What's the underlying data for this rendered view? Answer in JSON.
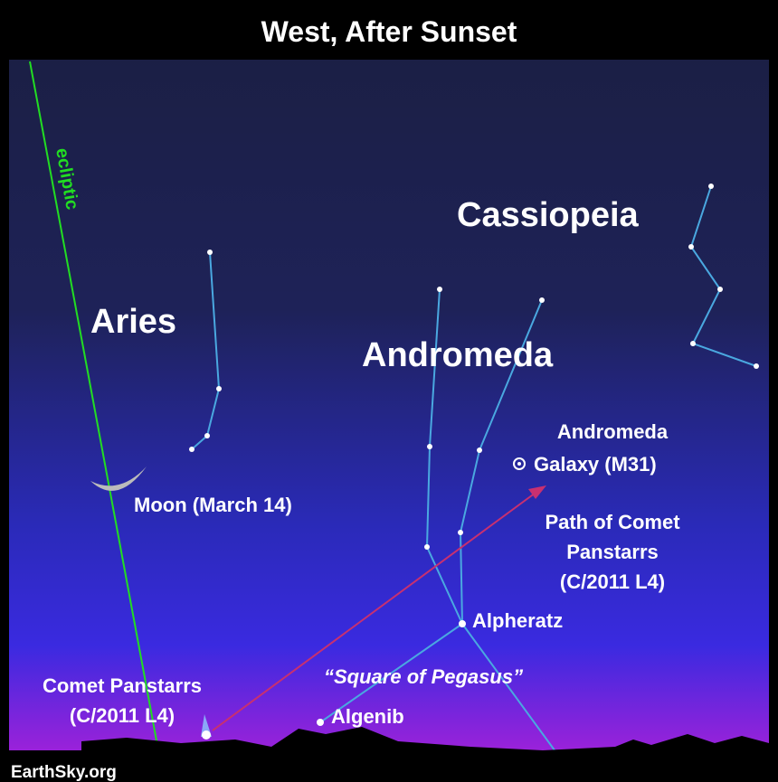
{
  "header": {
    "title": "West, After Sunset"
  },
  "ecliptic": {
    "label": "ecliptic"
  },
  "constellations": [
    {
      "label": "Cassiopeia"
    },
    {
      "label": "Aries"
    },
    {
      "label": "Andromeda"
    }
  ],
  "galaxy": {
    "lines": [
      "Andromeda",
      "Galaxy (M31)"
    ]
  },
  "moon": {
    "label": "Moon (March 14)"
  },
  "comet_path": {
    "lines": [
      "Path of Comet",
      "Panstarrs",
      "(C/2011 L4)"
    ]
  },
  "stars": [
    {
      "label": "Alpheratz"
    },
    {
      "label": "Algenib"
    }
  ],
  "asterism": {
    "label": "“Square of Pegasus”"
  },
  "comet": {
    "lines": [
      "Comet Panstarrs",
      "(C/2011 L4)"
    ]
  },
  "credit": "EarthSky.org"
}
